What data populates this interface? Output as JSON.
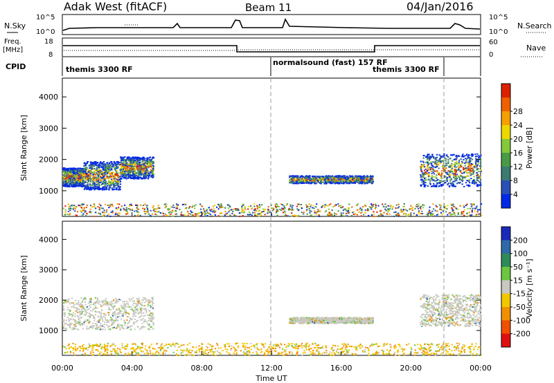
{
  "header": {
    "station": "Adak West (fitACF)",
    "beam": "Beam 11",
    "date": "04/Jan/2016"
  },
  "top_panels": {
    "nsky_label": "N.Sky",
    "nsky_ticks": [
      "10^5",
      "10^0"
    ],
    "nsearch_label": "N.Search",
    "nsearch_ticks": [
      "10^5",
      "10^0"
    ],
    "freq_label_1": "Freq.",
    "freq_label_2": "[MHz]",
    "freq_ticks": [
      "18",
      "8"
    ],
    "nave_label": "Nave",
    "nave_ticks": [
      "60",
      "0"
    ],
    "cpid_label": "CPID",
    "cpid_entries": [
      "themis 3300 RF",
      "normalsound (fast) 157 RF",
      "themis 3300 RF"
    ]
  },
  "chart_data": [
    {
      "type": "heatmap",
      "name": "power",
      "ylabel": "Slant Range [km]",
      "xlabel": "Time UT",
      "x_ticks": [
        "00:00",
        "04:00",
        "08:00",
        "12:00",
        "16:00",
        "20:00",
        "00:00"
      ],
      "y_ticks": [
        1000,
        2000,
        3000,
        4000
      ],
      "ylim": [
        180,
        4600
      ],
      "colorbar_label": "Power [dB]",
      "colorbar_ticks": [
        "4",
        "8",
        "12",
        "16",
        "20",
        "24",
        "28"
      ],
      "colorbar_colors": [
        "#0028e6",
        "#2a4fb5",
        "#3d7a70",
        "#4a9a45",
        "#84c83c",
        "#ecd800",
        "#f5a000",
        "#ee6000",
        "#dc2000"
      ],
      "regions": [
        {
          "t0": 0.0,
          "t1": 1.2,
          "r0": 1150,
          "r1": 1750
        },
        {
          "t0": 1.2,
          "t1": 3.3,
          "r0": 1050,
          "r1": 1950
        },
        {
          "t0": 3.3,
          "t1": 5.2,
          "r0": 1400,
          "r1": 2100
        },
        {
          "t0": 13.0,
          "t1": 17.8,
          "r0": 1250,
          "r1": 1500
        },
        {
          "t0": 20.5,
          "t1": 24.0,
          "r0": 1150,
          "r1": 2200
        },
        {
          "t0": 0.0,
          "t1": 24.0,
          "r0": 200,
          "r1": 600
        }
      ]
    },
    {
      "type": "heatmap",
      "name": "velocity",
      "ylabel": "Slant Range [km]",
      "xlabel": "Time UT",
      "x_ticks": [
        "00:00",
        "04:00",
        "08:00",
        "12:00",
        "16:00",
        "20:00",
        "00:00"
      ],
      "y_ticks": [
        1000,
        2000,
        3000,
        4000
      ],
      "ylim": [
        180,
        4600
      ],
      "colorbar_label": "Velocity [m s⁻¹]",
      "colorbar_ticks": [
        "200",
        "100",
        "50",
        "15",
        "-15",
        "-50",
        "-100",
        "-200"
      ],
      "colorbar_colors": [
        "#1a2ab8",
        "#2e6aa8",
        "#2f8a5a",
        "#6cc640",
        "#c8c8c0",
        "#f0c800",
        "#f09000",
        "#f05000",
        "#e01010"
      ],
      "regions": [
        {
          "t0": 0.0,
          "t1": 5.2,
          "r0": 1050,
          "r1": 2100
        },
        {
          "t0": 13.0,
          "t1": 17.8,
          "r0": 1250,
          "r1": 1450
        },
        {
          "t0": 20.5,
          "t1": 24.0,
          "r0": 1150,
          "r1": 2200
        },
        {
          "t0": 0.0,
          "t1": 24.0,
          "r0": 200,
          "r1": 600
        }
      ]
    }
  ],
  "x_axis_title": "Time UT"
}
